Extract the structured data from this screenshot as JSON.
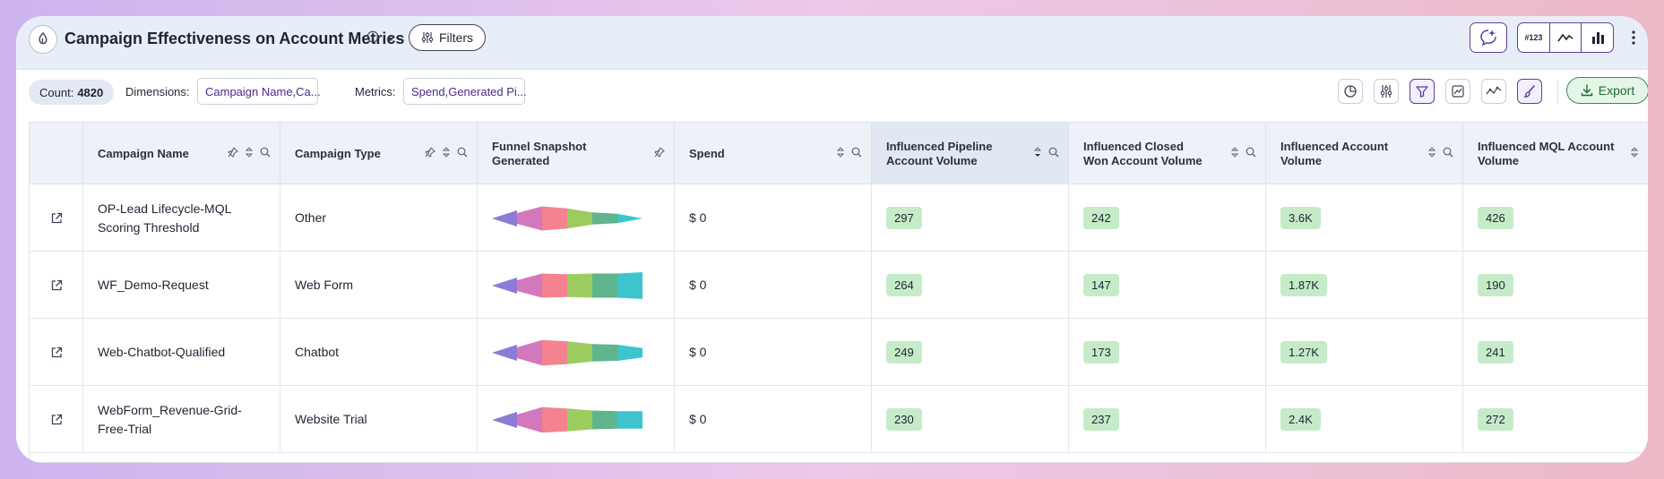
{
  "header": {
    "title": "Campaign Effectiveness on Account Metrics",
    "filters_label": "Filters",
    "viz_number_label": "#123"
  },
  "toolbar": {
    "count_label": "Count:",
    "count_value": "4820",
    "dimensions_label": "Dimensions:",
    "dimensions_value": "Campaign Name,Ca...",
    "metrics_label": "Metrics:",
    "metrics_value": "Spend,Generated Pi...",
    "export_label": "Export"
  },
  "table": {
    "columns": [
      {
        "label": "Campaign Name"
      },
      {
        "label": "Campaign Type"
      },
      {
        "label": "Funnel Snapshot Generated"
      },
      {
        "label": "Spend"
      },
      {
        "label": "Influenced Pipeline Account Volume"
      },
      {
        "label": "Influenced Closed Won Account Volume"
      },
      {
        "label": "Influenced Account Volume"
      },
      {
        "label": "Influenced MQL Account Volume"
      }
    ],
    "funnel_colors": [
      "#8d7bd6",
      "#d378bd",
      "#f4838f",
      "#9ccb5e",
      "#5fb58d",
      "#3dc4cf"
    ],
    "rows": [
      {
        "name": "OP-Lead Lifecycle-MQL Scoring Threshold",
        "type": "Other",
        "spend": "$ 0",
        "pipeline": "297",
        "closed_won": "242",
        "account": "3.6K",
        "mql": "426",
        "funnel": [
          0.4,
          0.9,
          0.75,
          0.45,
          0.35,
          0.0
        ]
      },
      {
        "name": "WF_Demo-Request",
        "type": "Web Form",
        "spend": "$ 0",
        "pipeline": "264",
        "closed_won": "147",
        "account": "1.87K",
        "mql": "190",
        "funnel": [
          0.4,
          0.9,
          0.85,
          0.9,
          0.9,
          1.0
        ]
      },
      {
        "name": "Web-Chatbot-Qualified",
        "type": "Chatbot",
        "spend": "$ 0",
        "pipeline": "249",
        "closed_won": "173",
        "account": "1.27K",
        "mql": "241",
        "funnel": [
          0.4,
          0.95,
          0.85,
          0.65,
          0.6,
          0.35
        ]
      },
      {
        "name": "WebForm_Revenue-Grid-Free-Trial",
        "type": "Website Trial",
        "spend": "$ 0",
        "pipeline": "230",
        "closed_won": "237",
        "account": "2.4K",
        "mql": "272",
        "funnel": [
          0.4,
          0.95,
          0.85,
          0.7,
          0.65,
          0.65
        ]
      }
    ]
  }
}
